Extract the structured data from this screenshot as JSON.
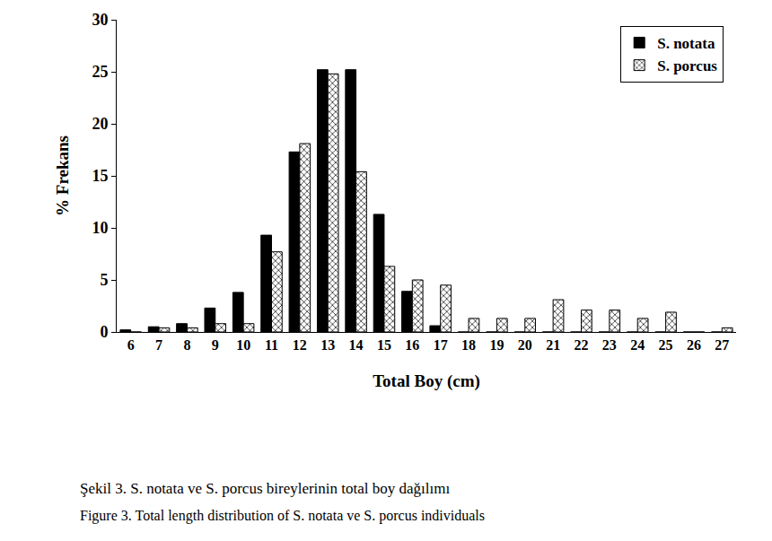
{
  "chart_data": {
    "type": "bar",
    "x_label": "Total Boy (cm)",
    "y_label": "% Frekans",
    "categories": [
      "6",
      "7",
      "8",
      "9",
      "10",
      "11",
      "12",
      "13",
      "14",
      "15",
      "16",
      "17",
      "18",
      "19",
      "20",
      "21",
      "22",
      "23",
      "24",
      "25",
      "26",
      "27"
    ],
    "series": [
      {
        "name": "S. notata",
        "color": "#000000",
        "marker": "solid",
        "values": [
          0.2,
          0.5,
          0.8,
          2.3,
          3.8,
          9.3,
          17.3,
          25.2,
          25.2,
          11.3,
          3.9,
          0.6,
          0,
          0,
          0,
          0,
          0,
          0,
          0,
          0,
          0,
          0
        ]
      },
      {
        "name": "S. porcus",
        "color": "#000000",
        "marker": "hatch",
        "values": [
          0,
          0.4,
          0.4,
          0.8,
          0.8,
          7.7,
          18.1,
          24.8,
          15.4,
          6.3,
          5.0,
          4.5,
          1.3,
          1.3,
          1.3,
          3.1,
          2.1,
          2.1,
          1.3,
          1.9,
          0,
          0.4
        ]
      }
    ],
    "ylim": [
      0,
      30
    ],
    "yticks": [
      0,
      5,
      10,
      15,
      20,
      25,
      30
    ],
    "grid": false,
    "legend": "top-right",
    "captions": [
      "Şekil 3. S. notata ve S. porcus bireylerinin total boy dağılımı",
      "Figure 3. Total length distribution of S. notata ve S. porcus individuals"
    ]
  }
}
